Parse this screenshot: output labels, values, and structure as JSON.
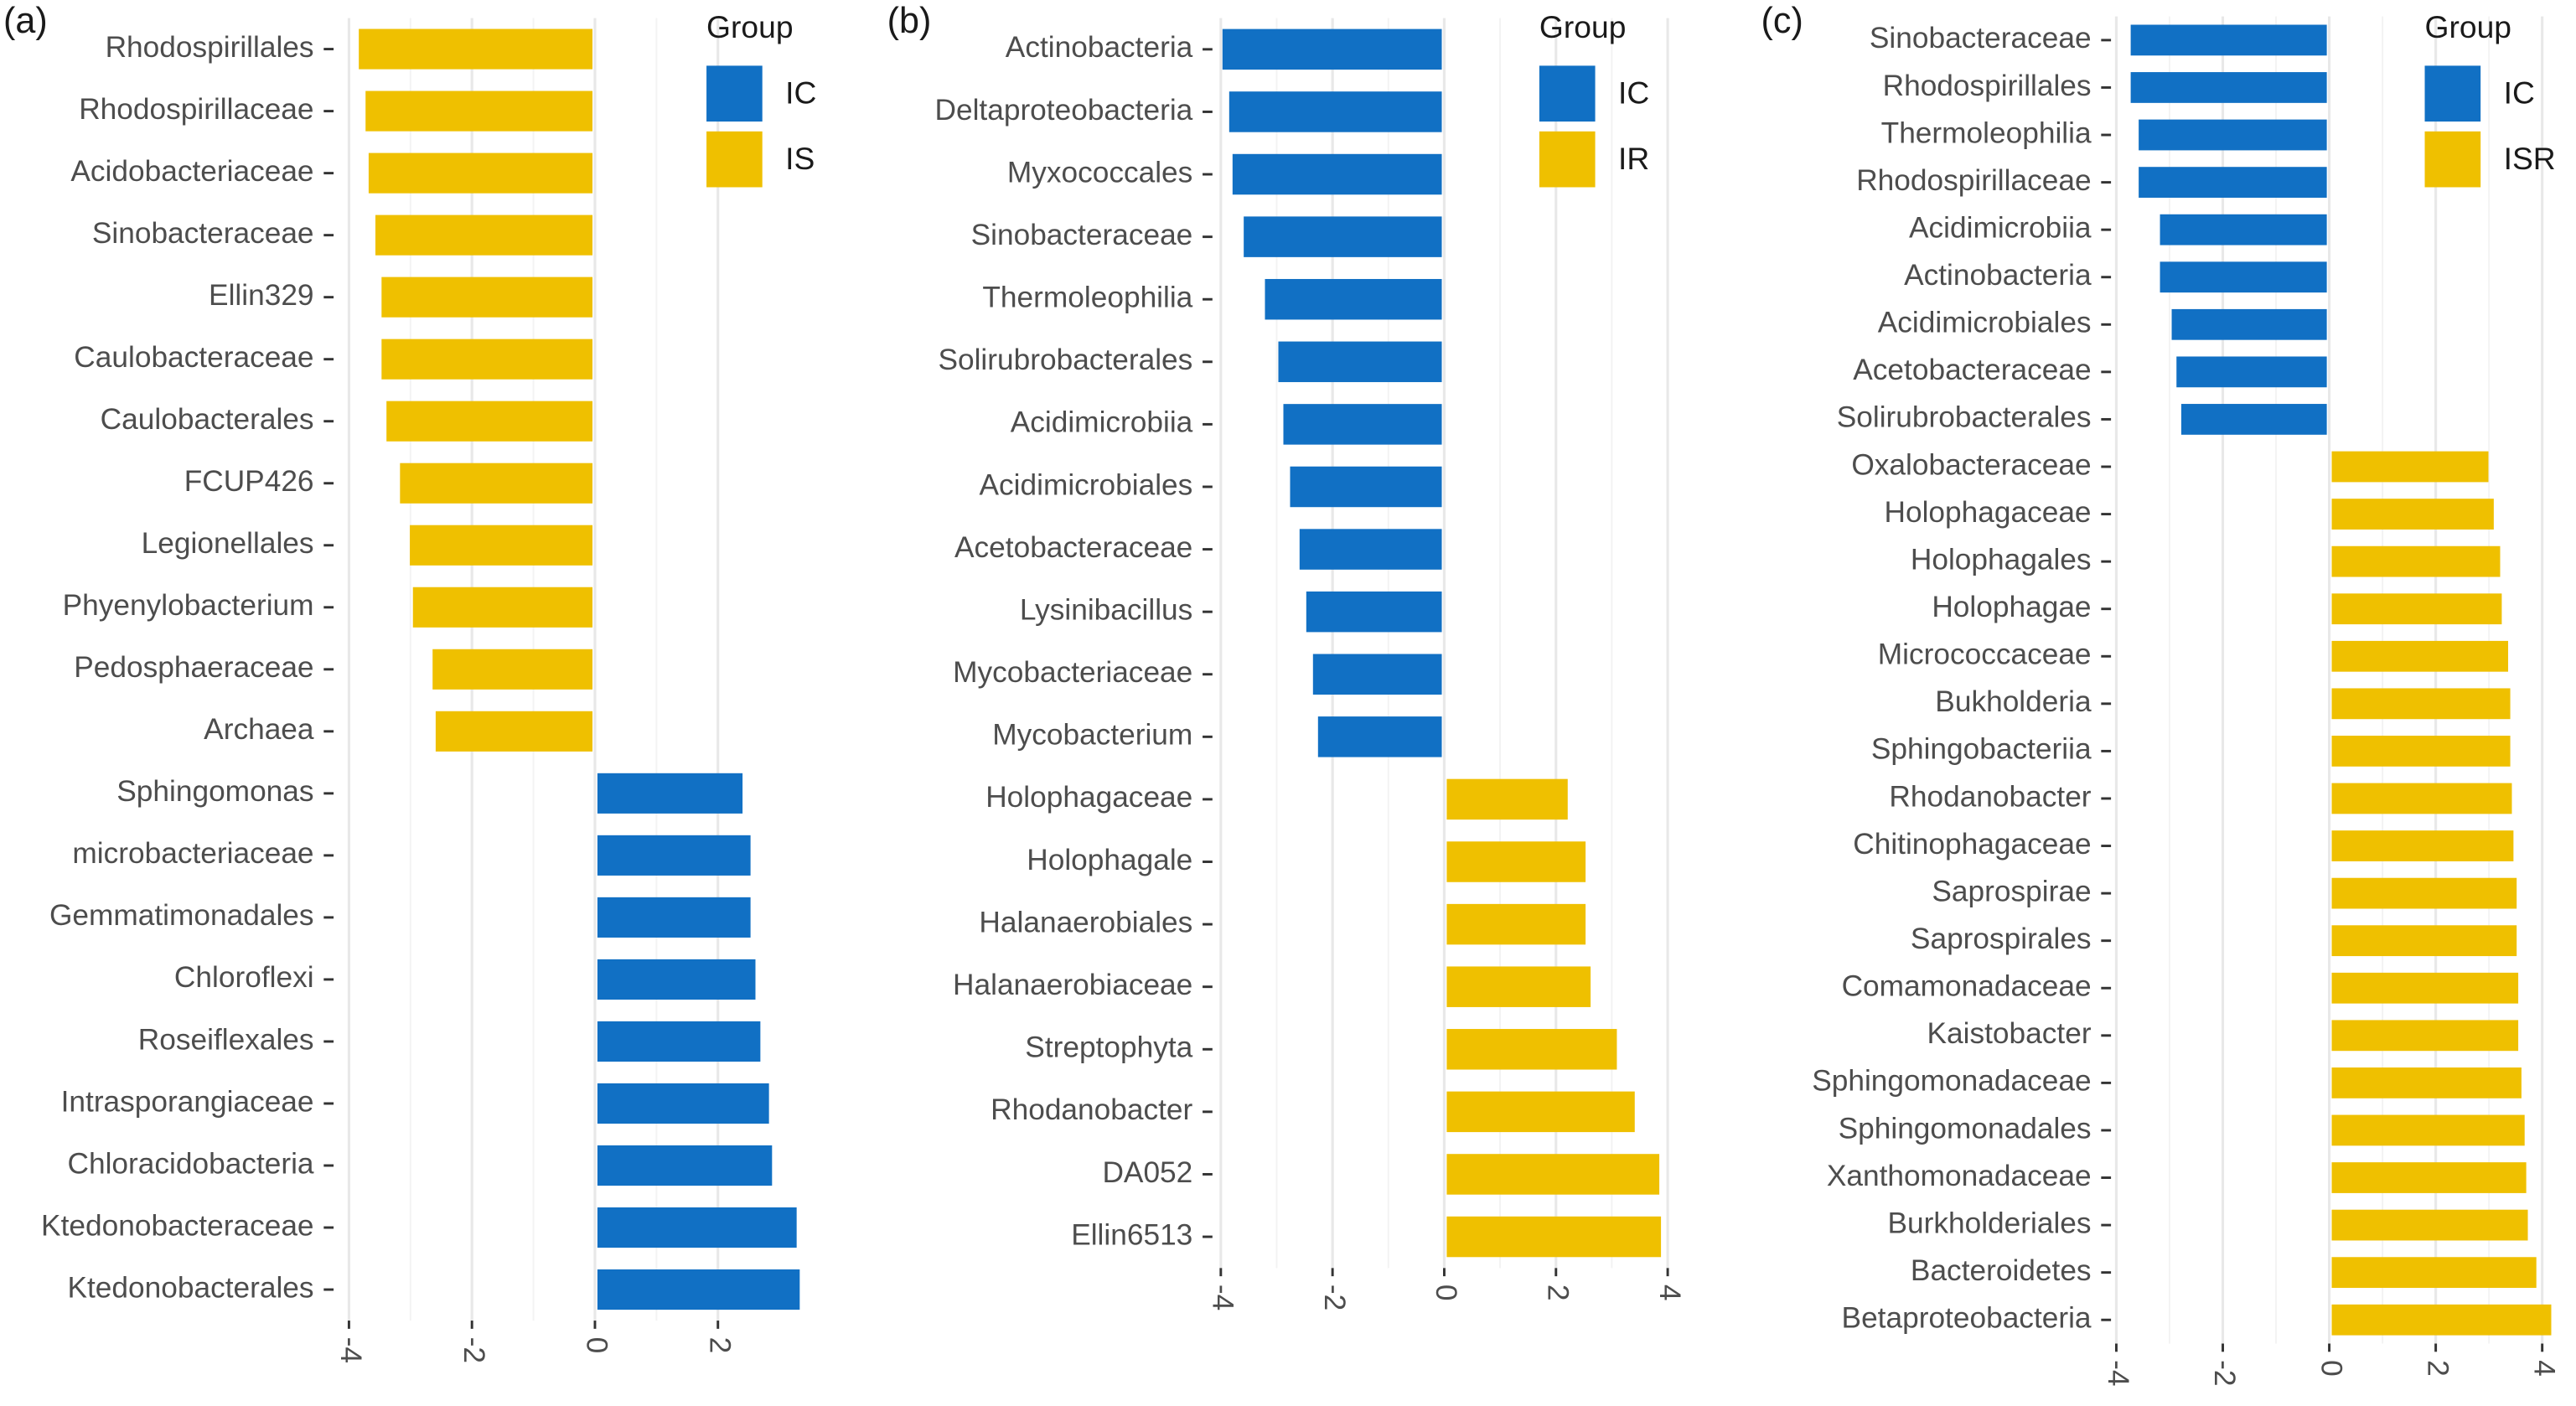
{
  "chart_data": [
    {
      "type": "bar",
      "orientation": "horizontal",
      "panel_label": "(a)",
      "legend_title": "Group",
      "grid": true,
      "categories": [
        "Rhodospirillales",
        "Rhodospirillaceae",
        "Acidobacteriaceae",
        "Sinobacteraceae",
        "Ellin329",
        "Caulobacteraceae",
        "Caulobacterales",
        "FCUP426",
        "Legionellales",
        "Phyenylobacterium",
        "Pedosphaeraceae",
        "Archaea",
        "Sphingomonas",
        "microbacteriaceae",
        "Gemmatimonadales",
        "Chloroflexi",
        "Roseiflexales",
        "Intrasporangiaceae",
        "Chloracidobacteria",
        "Ktedonobacteraceae",
        "Ktedonobacterales"
      ],
      "series": [
        {
          "name": "IC",
          "color": "#1170c4",
          "values": [
            null,
            null,
            null,
            null,
            null,
            null,
            null,
            null,
            null,
            null,
            null,
            null,
            2.4,
            2.53,
            2.53,
            2.61,
            2.69,
            2.83,
            2.88,
            3.28,
            3.33
          ]
        },
        {
          "name": "IS",
          "color": "#efc000",
          "values": [
            -3.84,
            -3.73,
            -3.68,
            -3.57,
            -3.47,
            -3.47,
            -3.39,
            -3.17,
            -3.01,
            -2.96,
            -2.64,
            -2.59,
            null,
            null,
            null,
            null,
            null,
            null,
            null,
            null,
            null
          ]
        }
      ],
      "xlim": [
        -4.25,
        3.55
      ],
      "xticks": [
        -4,
        -2,
        0,
        2
      ]
    },
    {
      "type": "bar",
      "orientation": "horizontal",
      "panel_label": "(b)",
      "legend_title": "Group",
      "grid": true,
      "categories": [
        "Actinobacteria",
        "Deltaproteobacteria",
        "Myxococcales",
        "Sinobacteraceae",
        "Thermoleophilia",
        "Solirubrobacterales",
        "Acidimicrobiia",
        "Acidimicrobiales",
        "Acetobacteraceae",
        "Lysinibacillus",
        "Mycobacteriaceae",
        "Mycobacterium",
        "Holophagaceae",
        "Holophagale",
        "Halanaerobiales",
        "Halanaerobiaceae",
        "Streptophyta",
        "Rhodanobacter",
        "DA052",
        "Ellin6513"
      ],
      "series": [
        {
          "name": "IC",
          "color": "#1170c4",
          "values": [
            -3.97,
            -3.85,
            -3.79,
            -3.59,
            -3.21,
            -2.97,
            -2.88,
            -2.76,
            -2.59,
            -2.47,
            -2.35,
            -2.26,
            null,
            null,
            null,
            null,
            null,
            null,
            null,
            null
          ]
        },
        {
          "name": "IR",
          "color": "#efc000",
          "values": [
            null,
            null,
            null,
            null,
            null,
            null,
            null,
            null,
            null,
            null,
            null,
            null,
            2.21,
            2.53,
            2.53,
            2.62,
            3.09,
            3.41,
            3.85,
            3.88
          ]
        }
      ],
      "xlim": [
        -4.15,
        4.29
      ],
      "xticks": [
        -4,
        -2,
        0,
        2,
        4
      ]
    },
    {
      "type": "bar",
      "orientation": "horizontal",
      "panel_label": "(c)",
      "legend_title": "Group",
      "grid": true,
      "categories": [
        "Sinobacteraceae",
        "Rhodospirillales",
        "Thermoleophilia",
        "Rhodospirillaceae",
        "Acidimicrobiia",
        "Actinobacteria",
        "Acidimicrobiales",
        "Acetobacteraceae",
        "Solirubrobacterales",
        "Oxalobacteraceae",
        "Holophagaceae",
        "Holophagales",
        "Holophagae",
        "Micrococcaceae",
        "Bukholderia",
        "Sphingobacteriia",
        "Rhodanobacter",
        "Chitinophagaceae",
        "Saprospirae",
        "Saprospirales",
        "Comamonadaceae",
        "Kaistobacter",
        "Sphingomonadaceae",
        "Sphingomonadales",
        "Xanthomonadaceae",
        "Burkholderiales",
        "Bacteroidetes",
        "Betaproteobacteria"
      ],
      "series": [
        {
          "name": "IC",
          "color": "#1170c4",
          "values": [
            -3.73,
            -3.73,
            -3.58,
            -3.58,
            -3.18,
            -3.18,
            -2.96,
            -2.87,
            -2.78,
            null,
            null,
            null,
            null,
            null,
            null,
            null,
            null,
            null,
            null,
            null,
            null,
            null,
            null,
            null,
            null,
            null,
            null,
            null
          ]
        },
        {
          "name": "ISR",
          "color": "#efc000",
          "values": [
            null,
            null,
            null,
            null,
            null,
            null,
            null,
            null,
            null,
            2.99,
            3.09,
            3.21,
            3.24,
            3.36,
            3.4,
            3.4,
            3.43,
            3.46,
            3.52,
            3.52,
            3.55,
            3.55,
            3.61,
            3.67,
            3.7,
            3.73,
            3.89,
            4.17
          ]
        }
      ],
      "xlim": [
        -4.1,
        4.54
      ],
      "xticks": [
        -4,
        -2,
        0,
        2,
        4
      ]
    }
  ]
}
